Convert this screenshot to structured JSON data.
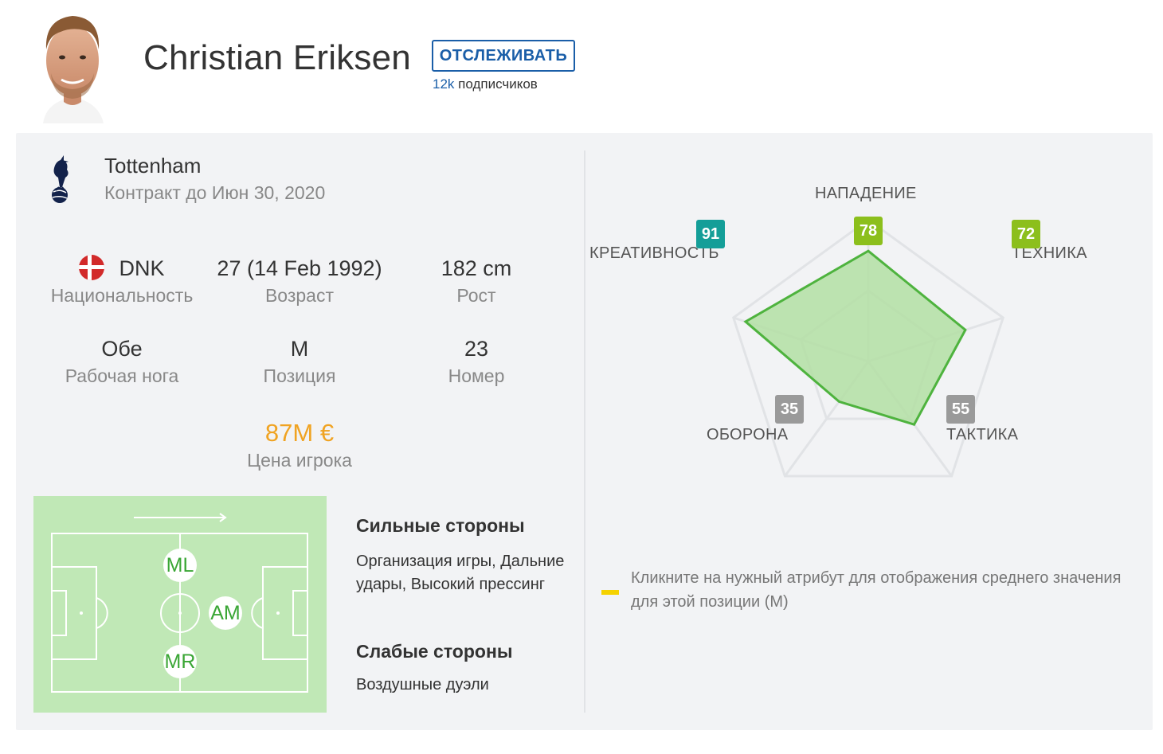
{
  "header": {
    "player_name": "Christian Eriksen",
    "follow_label": "ОТСЛЕЖИВАТЬ",
    "followers_count": "12k",
    "followers_label": "подписчиков"
  },
  "club": {
    "name": "Tottenham",
    "contract": "Контракт до Июн 30, 2020"
  },
  "stats": {
    "nationality": {
      "value": "DNK",
      "label": "Национальность"
    },
    "age": {
      "value": "27 (14 Feb 1992)",
      "label": "Возраст"
    },
    "height": {
      "value": "182 cm",
      "label": "Рост"
    },
    "foot": {
      "value": "Обе",
      "label": "Рабочая нога"
    },
    "position": {
      "value": "M",
      "label": "Позиция"
    },
    "number": {
      "value": "23",
      "label": "Номер"
    },
    "price": {
      "value": "87M €",
      "label": "Цена игрока"
    }
  },
  "positions": [
    "ML",
    "AM",
    "MR"
  ],
  "strengths": {
    "title": "Сильные стороны",
    "text": "Организация игры, Дальние удары, Высокий прессинг"
  },
  "weaknesses": {
    "title": "Слабые стороны",
    "text": "Воздушные дуэли"
  },
  "attributes": [
    {
      "label": "НАПАДЕНИЕ",
      "value": 78,
      "color": "#8cbf1c"
    },
    {
      "label": "ТЕХНИКА",
      "value": 72,
      "color": "#8cbf1c"
    },
    {
      "label": "ТАКТИКА",
      "value": 55,
      "color": "#9a9a9a"
    },
    {
      "label": "ОБОРОНА",
      "value": 35,
      "color": "#9a9a9a"
    },
    {
      "label": "КРЕАТИВНОСТЬ",
      "value": 91,
      "color": "#149e98"
    }
  ],
  "legend": {
    "text": "Кликните на нужный атрибут для отображения среднего значения для этой позиции (M)",
    "color": "#f5d200"
  },
  "colors": {
    "accent": "#1a5ea8",
    "price": "#f0a322",
    "radar_fill": "#b3dfa3",
    "radar_stroke": "#4eb33e",
    "field": "#c0e8b6"
  }
}
